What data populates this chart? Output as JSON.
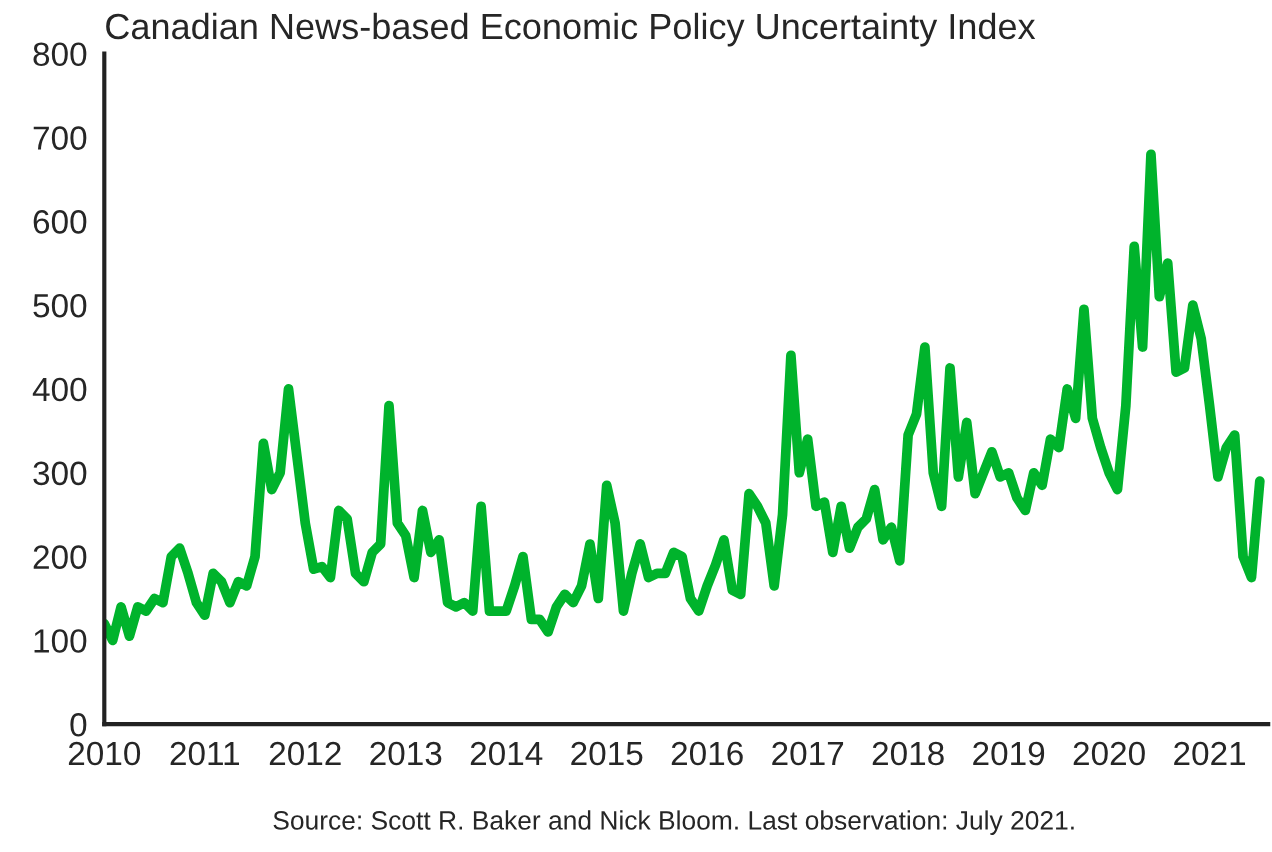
{
  "chart_data": {
    "type": "line",
    "title": "Canadian News-based Economic Policy Uncertainty Index",
    "annotations": [
      "Source: Scott R. Baker and Nick Bloom. Last observation: July 2021."
    ],
    "x": [
      "2010-01",
      "2010-02",
      "2010-03",
      "2010-04",
      "2010-05",
      "2010-06",
      "2010-07",
      "2010-08",
      "2010-09",
      "2010-10",
      "2010-11",
      "2010-12",
      "2011-01",
      "2011-02",
      "2011-03",
      "2011-04",
      "2011-05",
      "2011-06",
      "2011-07",
      "2011-08",
      "2011-09",
      "2011-10",
      "2011-11",
      "2011-12",
      "2012-01",
      "2012-02",
      "2012-03",
      "2012-04",
      "2012-05",
      "2012-06",
      "2012-07",
      "2012-08",
      "2012-09",
      "2012-10",
      "2012-11",
      "2012-12",
      "2013-01",
      "2013-02",
      "2013-03",
      "2013-04",
      "2013-05",
      "2013-06",
      "2013-07",
      "2013-08",
      "2013-09",
      "2013-10",
      "2013-11",
      "2013-12",
      "2014-01",
      "2014-02",
      "2014-03",
      "2014-04",
      "2014-05",
      "2014-06",
      "2014-07",
      "2014-08",
      "2014-09",
      "2014-10",
      "2014-11",
      "2014-12",
      "2015-01",
      "2015-02",
      "2015-03",
      "2015-04",
      "2015-05",
      "2015-06",
      "2015-07",
      "2015-08",
      "2015-09",
      "2015-10",
      "2015-11",
      "2015-12",
      "2016-01",
      "2016-02",
      "2016-03",
      "2016-04",
      "2016-05",
      "2016-06",
      "2016-07",
      "2016-08",
      "2016-09",
      "2016-10",
      "2016-11",
      "2016-12",
      "2017-01",
      "2017-02",
      "2017-03",
      "2017-04",
      "2017-05",
      "2017-06",
      "2017-07",
      "2017-08",
      "2017-09",
      "2017-10",
      "2017-11",
      "2017-12",
      "2018-01",
      "2018-02",
      "2018-03",
      "2018-04",
      "2018-05",
      "2018-06",
      "2018-07",
      "2018-08",
      "2018-09",
      "2018-10",
      "2018-11",
      "2018-12",
      "2019-01",
      "2019-02",
      "2019-03",
      "2019-04",
      "2019-05",
      "2019-06",
      "2019-07",
      "2019-08",
      "2019-09",
      "2019-10",
      "2019-11",
      "2019-12",
      "2020-01",
      "2020-02",
      "2020-03",
      "2020-04",
      "2020-05",
      "2020-06",
      "2020-07",
      "2020-08",
      "2020-09",
      "2020-10",
      "2020-11",
      "2020-12",
      "2021-01",
      "2021-02",
      "2021-03",
      "2021-04",
      "2021-05",
      "2021-06",
      "2021-07"
    ],
    "series": [
      {
        "color": "#00b32c",
        "values": [
          120,
          100,
          140,
          105,
          140,
          135,
          150,
          145,
          200,
          210,
          180,
          145,
          130,
          180,
          170,
          145,
          170,
          165,
          200,
          335,
          280,
          300,
          400,
          320,
          240,
          185,
          188,
          175,
          255,
          245,
          180,
          170,
          205,
          215,
          380,
          240,
          225,
          175,
          255,
          205,
          220,
          145,
          140,
          145,
          135,
          260,
          135,
          135,
          135,
          165,
          200,
          125,
          125,
          110,
          140,
          155,
          145,
          165,
          215,
          150,
          285,
          240,
          135,
          180,
          215,
          175,
          180,
          180,
          205,
          200,
          150,
          135,
          165,
          190,
          220,
          160,
          155,
          275,
          260,
          240,
          165,
          250,
          440,
          300,
          340,
          260,
          265,
          205,
          260,
          210,
          235,
          245,
          280,
          220,
          235,
          195,
          345,
          370,
          450,
          300,
          260,
          425,
          295,
          360,
          275,
          300,
          325,
          295,
          300,
          270,
          255,
          300,
          285,
          340,
          330,
          400,
          365,
          495,
          365,
          330,
          300,
          280,
          380,
          570,
          450,
          680,
          510,
          550,
          420,
          425,
          500,
          460,
          380,
          295,
          330,
          345,
          200,
          175,
          290
        ]
      }
    ],
    "xlim": [
      "2010-01",
      "2021-08"
    ],
    "xticks": [
      "2010",
      "2011",
      "2012",
      "2013",
      "2014",
      "2015",
      "2016",
      "2017",
      "2018",
      "2019",
      "2020",
      "2021"
    ],
    "ylim": [
      0,
      800
    ],
    "yticks": [
      0,
      100,
      200,
      300,
      400,
      500,
      600,
      700,
      800
    ],
    "grid": false,
    "legend": false,
    "line_style": "solid",
    "marker": "none"
  }
}
